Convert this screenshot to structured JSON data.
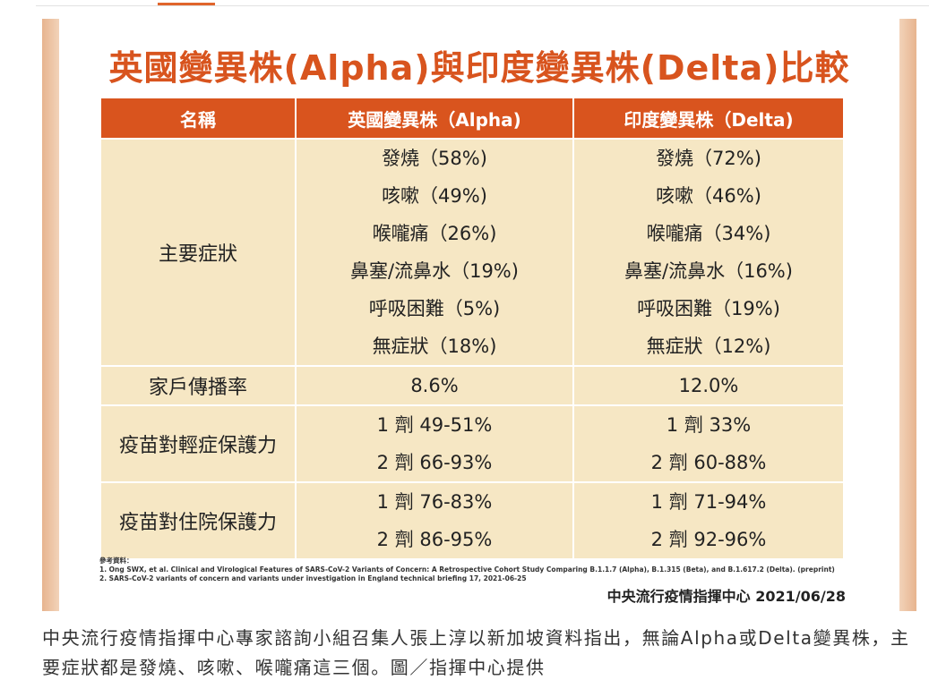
{
  "figure": {
    "title": "英國變異株(Alpha)與印度變異株(Delta)比較",
    "table": {
      "headers": [
        "名稱",
        "英國變異株（Alpha)",
        "印度變異株（Delta)"
      ],
      "rows": [
        {
          "name": "主要症狀",
          "alpha": [
            "發燒（58%)",
            "咳嗽（49%)",
            "喉嚨痛（26%)",
            "鼻塞/流鼻水（19%)",
            "呼吸困難（5%)",
            "無症狀（18%)"
          ],
          "delta": [
            "發燒（72%)",
            "咳嗽（46%)",
            "喉嚨痛（34%)",
            "鼻塞/流鼻水（16%)",
            "呼吸困難（19%)",
            "無症狀（12%)"
          ]
        },
        {
          "name": "家戶傳播率",
          "alpha": [
            "8.6%"
          ],
          "delta": [
            "12.0%"
          ]
        },
        {
          "name": "疫苗對輕症保護力",
          "alpha": [
            "1 劑 49-51%",
            "2 劑 66-93%"
          ],
          "delta": [
            "1 劑 33%",
            "2 劑 60-88%"
          ]
        },
        {
          "name": "疫苗對住院保護力",
          "alpha": [
            "1 劑 76-83%",
            "2 劑 86-95%"
          ],
          "delta": [
            "1 劑 71-94%",
            "2 劑 92-96%"
          ]
        }
      ]
    },
    "references": [
      "參考資料：",
      "1. Ong SWX, et al. Clinical and Virological Features of SARS-CoV-2 Variants of Concern: A Retrospective Cohort Study Comparing B.1.1.7 (Alpha), B.1.315 (Beta), and B.1.617.2 (Delta). (preprint)",
      "2. SARS-CoV-2 variants of concern and variants under investigation in England technical briefing 17, 2021-06-25"
    ],
    "source": "中央流行疫情指揮中心 2021/06/28"
  },
  "caption": "中央流行疫情指揮中心專家諮詢小組召集人張上淳以新加坡資料指出，無論Alpha或Delta變異株，主要症狀都是發燒、咳嗽、喉嚨痛這三個。圖／指揮中心提供",
  "colors": {
    "accent": "#d9541e",
    "cell": "#f6e7c4",
    "edge": "#e7b48f"
  }
}
